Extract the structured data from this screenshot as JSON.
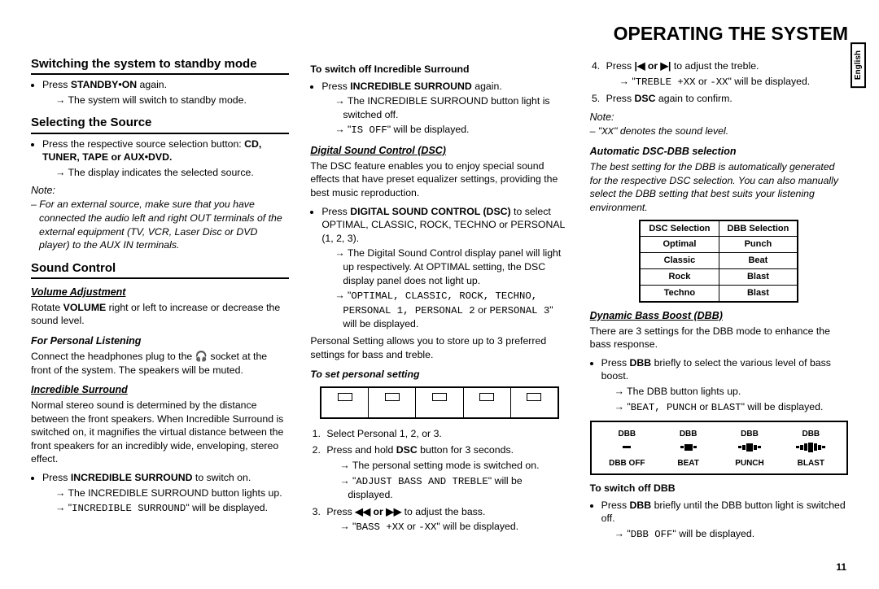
{
  "title_bold": "OPERATING",
  "title_rest": " THE SYSTEM",
  "lang_tab": "English",
  "page_number": "11",
  "col1": {
    "h_standby": "Switching the system to standby mode",
    "standby_bullet": "Press STANDBY•ON again.",
    "standby_arrow": "The system will switch to standby mode.",
    "h_source": "Selecting the Source",
    "source_bullet_pre": "Press the respective source selection button: ",
    "source_bullet_bold": "CD, TUNER, TAPE or AUX•DVD.",
    "source_arrow": "The display indicates the selected source.",
    "note": "Note:",
    "note_body": "For an external source, make sure that you have connected the audio left and right OUT terminals of the external equipment (TV, VCR, Laser Disc or DVD player) to the AUX IN terminals.",
    "h_sound": "Sound Control",
    "h_volume": "Volume Adjustment",
    "volume_body_pre": "Rotate ",
    "volume_body_bold": "VOLUME",
    "volume_body_post": " right or left to increase or decrease the sound level.",
    "h_personal": "For Personal Listening",
    "personal_body": "Connect the headphones plug to the 🎧 socket at the front of the system. The speakers will be muted.",
    "h_incredible": "Incredible Surround",
    "incredible_body": "Normal stereo sound is determined by the distance between the front speakers. When Incredible Surround is switched on, it magnifies the virtual distance between the front speakers for an incredibly wide, enveloping, stereo effect.",
    "incredible_bullet_pre": "Press ",
    "incredible_bullet_bold": "INCREDIBLE SURROUND",
    "incredible_bullet_post": " to switch on.",
    "incredible_arrow1": "The INCREDIBLE SURROUND button lights up.",
    "incredible_arrow2_pre": "\"",
    "incredible_arrow2_lcd": "INCREDIBLE SURROUND",
    "incredible_arrow2_post": "\" will be displayed."
  },
  "col2": {
    "h_switch_off": "To switch off Incredible Surround",
    "off_bullet_pre": "Press ",
    "off_bullet_bold": "INCREDIBLE SURROUND",
    "off_bullet_post": " again.",
    "off_arrow1": "The INCREDIBLE SURROUND button light is switched off.",
    "off_arrow2_pre": "\"",
    "off_arrow2_lcd": "IS OFF",
    "off_arrow2_post": "\" will be displayed.",
    "h_dsc": "Digital Sound Control (DSC)",
    "dsc_body": "The DSC feature enables you to enjoy special sound effects that have preset equalizer settings, providing the best music reproduction.",
    "dsc_bullet_pre": "Press ",
    "dsc_bullet_bold": "DIGITAL SOUND CONTROL (DSC)",
    "dsc_bullet_post": " to select OPTIMAL, CLASSIC, ROCK, TECHNO or PERSONAL (1, 2, 3).",
    "dsc_arrow1": "The Digital Sound Control display panel will light up respectively. At OPTIMAL setting, the DSC display panel does not light up.",
    "dsc_arrow2_pre": "\"",
    "dsc_arrow2_lcd": "OPTIMAL, CLASSIC, ROCK, TECHNO, PERSONAL 1, PERSONAL 2",
    "dsc_arrow2_mid": " or ",
    "dsc_arrow2_lcd2": "PERSONAL 3",
    "dsc_arrow2_post": "\" will be displayed.",
    "dsc_personal_body": "Personal Setting allows you to store up to 3 preferred settings for bass and treble.",
    "h_set_personal": "To set personal setting",
    "step1": "Select Personal 1, 2, or 3.",
    "step2_pre": "Press and hold ",
    "step2_bold": "DSC",
    "step2_post": " button for 3 seconds.",
    "step2_arrow1": "The personal setting mode is switched on.",
    "step2_arrow2_pre": "\"",
    "step2_arrow2_lcd": "ADJUST BASS AND TREBLE",
    "step2_arrow2_post": "\" will be displayed.",
    "step3_pre": "Press ",
    "step3_bold": "◀◀ or ▶▶",
    "step3_post": " to adjust the bass.",
    "step3_arrow_pre": "\"",
    "step3_arrow_lcd": "BASS +XX",
    "step3_arrow_mid": " or ",
    "step3_arrow_lcd2": "-XX",
    "step3_arrow_post": "\" will be displayed."
  },
  "col3": {
    "step4_pre": "Press ",
    "step4_bold": "|◀ or ▶|",
    "step4_post": " to adjust the treble.",
    "step4_arrow_pre": "\"",
    "step4_arrow_lcd": "TREBLE +XX",
    "step4_arrow_mid": " or ",
    "step4_arrow_lcd2": "-XX",
    "step4_arrow_post": "\" will be displayed.",
    "step5_pre": "Press ",
    "step5_bold": "DSC",
    "step5_post": " again to confirm.",
    "note": "Note:",
    "note_body_pre": "\"",
    "note_body_lcd": "XX",
    "note_body_post": "\" denotes the sound level.",
    "h_auto": "Automatic DSC-DBB selection",
    "auto_body": "The best setting for the DBB is automatically generated for the respective DSC selection. You can also manually select the DBB setting that best suits your listening environment.",
    "table_h1": "DSC Selection",
    "table_h2": "DBB Selection",
    "table_rows": [
      [
        "Optimal",
        "Punch"
      ],
      [
        "Classic",
        "Beat"
      ],
      [
        "Rock",
        "Blast"
      ],
      [
        "Techno",
        "Blast"
      ]
    ],
    "h_dbb": "Dynamic Bass Boost (DBB)",
    "dbb_body": "There are 3 settings for the DBB mode to enhance the bass response.",
    "dbb_bullet_pre": "Press ",
    "dbb_bullet_bold": "DBB",
    "dbb_bullet_post": " briefly to select the various level of bass boost.",
    "dbb_arrow1": "The DBB button lights up.",
    "dbb_arrow2_pre": "\"",
    "dbb_arrow2_lcd": "BEAT, PUNCH",
    "dbb_arrow2_mid": " or ",
    "dbb_arrow2_lcd2": "BLAST",
    "dbb_arrow2_post": "\" will be displayed.",
    "dbb_box_top": "DBB",
    "dbb_labels": [
      "DBB OFF",
      "BEAT",
      "PUNCH",
      "BLAST"
    ],
    "h_dbb_off": "To switch off DBB",
    "dbb_off_bullet_pre": "Press ",
    "dbb_off_bullet_bold": "DBB",
    "dbb_off_bullet_post": " briefly until the DBB button light is switched off.",
    "dbb_off_arrow_pre": "\"",
    "dbb_off_arrow_lcd": "DBB OFF",
    "dbb_off_arrow_post": "\" will be displayed."
  }
}
